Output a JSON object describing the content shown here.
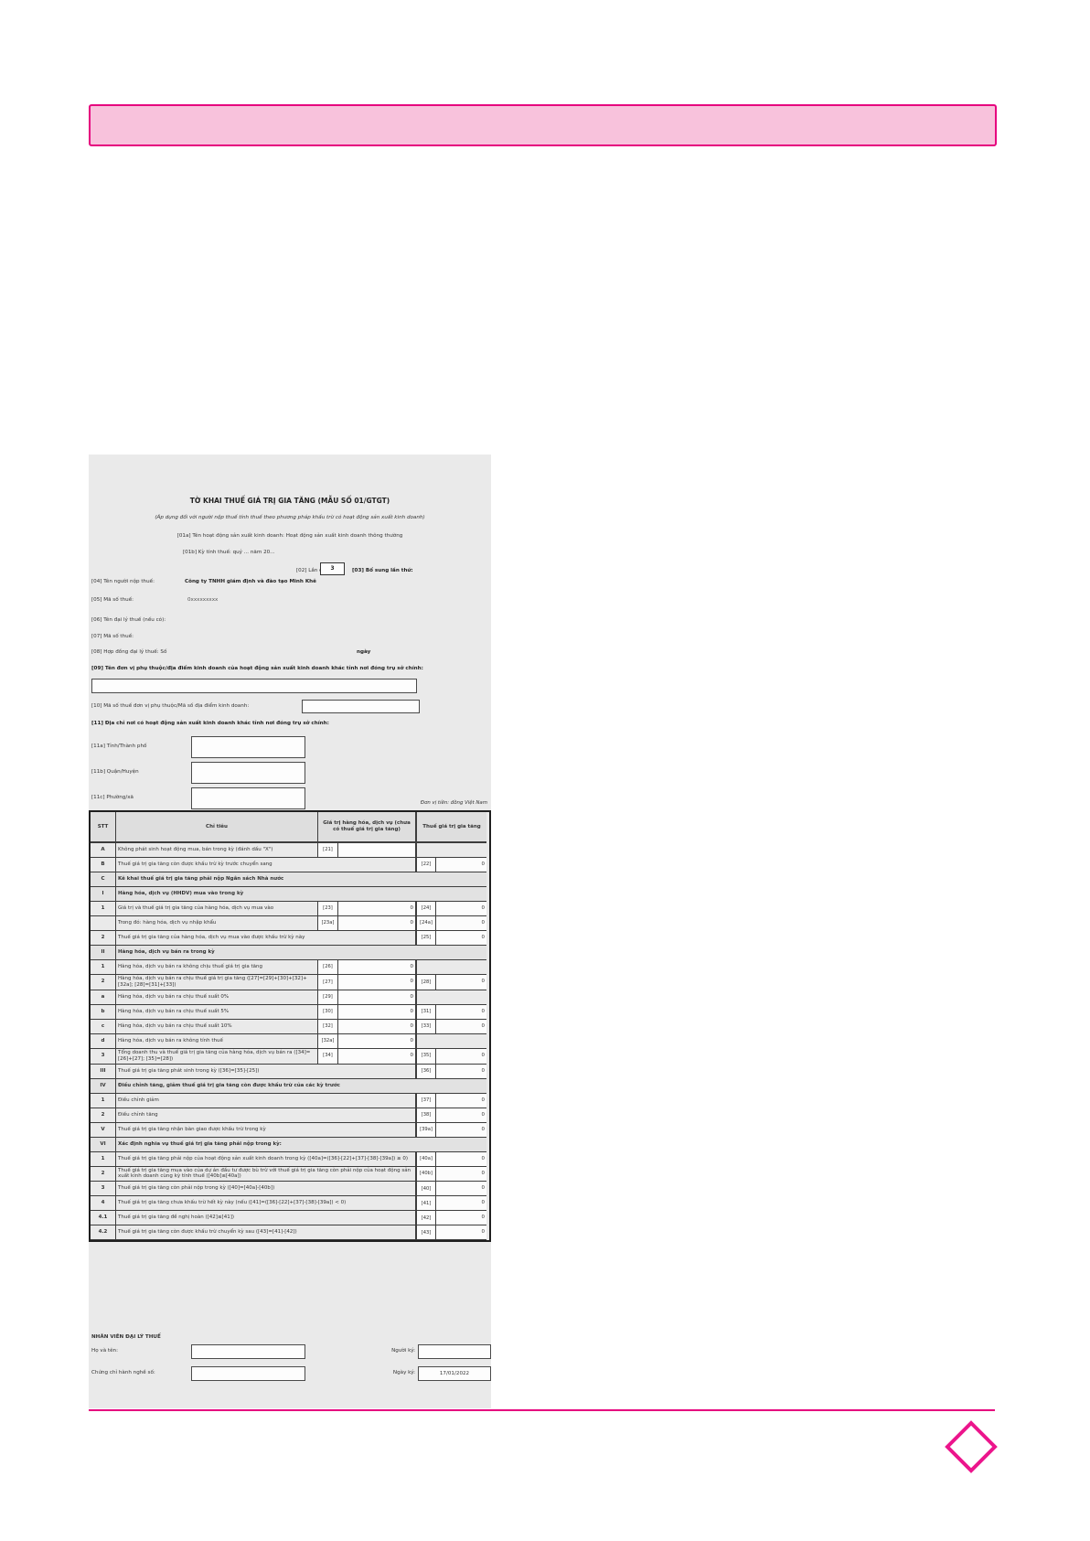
{
  "theme": {
    "accent": "#e6007e",
    "banner_fill": "#f8c2dc",
    "scan_background": "#eaeaea",
    "diamond_stroke": "#ec158c"
  },
  "scan": {
    "header": {
      "title": "TỜ KHAI THUẾ GIÁ TRỊ GIA TĂNG (MẪU SỐ 01/GTGT)",
      "subtitle": "(Áp dụng đối với người nộp thuế tính thuế theo phương pháp khấu trừ có hoạt động sản xuất kinh doanh)",
      "line_01a": "[01a] Tên hoạt động sản xuất kinh doanh: Hoạt động sản xuất kinh doanh thông thường",
      "line_01b": "[01b] Kỳ tính thuế: quý ... năm 20...",
      "f02_label": "[02] Lần đầu:",
      "f02_value": "3",
      "f03_label": "[03] Bổ sung lần thứ:",
      "f04_label": "[04] Tên người nộp thuế:",
      "f04_value": "Công ty TNHH giám định và đào tạo Minh Khê",
      "f05_label": "[05] Mã số thuế:",
      "f05_value": "0xxxxxxxxx",
      "f06_label": "[06] Tên đại lý thuế (nếu có):",
      "f07_label": "[07] Mã số thuế:",
      "f08_label": "[08] Hợp đồng đại lý thuế: Số",
      "f08_day": "ngày",
      "f09_label": "[09] Tên đơn vị phụ thuộc/địa điểm kinh doanh của hoạt động sản xuất kinh doanh khác tỉnh nơi đóng trụ sở chính:",
      "f10_label": "[10] Mã số thuế đơn vị phụ thuộc/Mã số địa điểm kinh doanh:",
      "f11_label": "[11] Địa chỉ nơi có hoạt động sản xuất kinh doanh khác tỉnh nơi đóng trụ sở chính:",
      "f11a_label": "[11a] Tỉnh/Thành phố",
      "f11b_label": "[11b] Quận/Huyện",
      "f11c_label": "[11c] Phường/xã",
      "currency_note": "Đơn vị tiền: đồng Việt Nam"
    },
    "table": {
      "headers": [
        "STT",
        "Chỉ tiêu",
        "Giá trị hàng hóa, dịch vụ (chưa có thuế giá trị gia tăng)",
        "Thuế giá trị gia tăng"
      ],
      "rows": [
        {
          "stt": "A",
          "label": "Không phát sinh hoạt động mua, bán trong kỳ (đánh dấu \"X\")",
          "c1": "[21]",
          "v1": ""
        },
        {
          "stt": "B",
          "label": "Thuế giá trị gia tăng còn được khấu trừ kỳ trước chuyển sang",
          "span": true,
          "c2": "[22]",
          "v2": "0"
        },
        {
          "stt": "C",
          "label": "Kê khai thuế giá trị gia tăng phải nộp Ngân sách Nhà nước",
          "kind": "section"
        },
        {
          "stt": "I",
          "label": "Hàng hóa, dịch vụ (HHDV) mua vào trong kỳ",
          "kind": "section"
        },
        {
          "stt": "1",
          "label": "Giá trị và thuế giá trị gia tăng của hàng hóa, dịch vụ mua vào",
          "c1": "[23]",
          "v1": "0",
          "c2": "[24]",
          "v2": "0"
        },
        {
          "stt": "",
          "label": "Trong đó: hàng hóa, dịch vụ nhập khẩu",
          "c1": "[23a]",
          "v1": "0",
          "c2": "[24a]",
          "v2": "0"
        },
        {
          "stt": "2",
          "label": "Thuế giá trị gia tăng của hàng hóa, dịch vụ mua vào được khấu trừ kỳ này",
          "span": true,
          "c2": "[25]",
          "v2": "0"
        },
        {
          "stt": "II",
          "label": "Hàng hóa, dịch vụ bán ra trong kỳ",
          "kind": "section"
        },
        {
          "stt": "1",
          "label": "Hàng hóa, dịch vụ bán ra không chịu thuế giá trị gia tăng",
          "c1": "[26]",
          "v1": "0"
        },
        {
          "stt": "2",
          "label": "Hàng hóa, dịch vụ bán ra chịu thuế giá trị gia tăng ([27]=[29]+[30]+[32]+[32a]; [28]=[31]+[33])",
          "c1": "[27]",
          "v1": "0",
          "c2": "[28]",
          "v2": "0"
        },
        {
          "stt": "a",
          "label": "Hàng hóa, dịch vụ bán ra chịu thuế suất 0%",
          "c1": "[29]",
          "v1": "0"
        },
        {
          "stt": "b",
          "label": "Hàng hóa, dịch vụ bán ra chịu thuế suất 5%",
          "c1": "[30]",
          "v1": "0",
          "c2": "[31]",
          "v2": "0"
        },
        {
          "stt": "c",
          "label": "Hàng hóa, dịch vụ bán ra chịu thuế suất 10%",
          "c1": "[32]",
          "v1": "0",
          "c2": "[33]",
          "v2": "0"
        },
        {
          "stt": "d",
          "label": "Hàng hóa, dịch vụ bán ra không tính thuế",
          "c1": "[32a]",
          "v1": "0"
        },
        {
          "stt": "3",
          "label": "Tổng doanh thu và thuế giá trị gia tăng của hàng hóa, dịch vụ bán ra ([34]=[26]+[27]; [35]=[28])",
          "c1": "[34]",
          "v1": "0",
          "c2": "[35]",
          "v2": "0"
        },
        {
          "stt": "III",
          "label": "Thuế giá trị gia tăng phát sinh trong kỳ ([36]=[35]-[25])",
          "span": true,
          "c2": "[36]",
          "v2": "0"
        },
        {
          "stt": "IV",
          "label": "Điều chỉnh tăng, giảm thuế giá trị gia tăng còn được khấu trừ của các kỳ trước",
          "kind": "section"
        },
        {
          "stt": "1",
          "label": "Điều chỉnh giảm",
          "span": true,
          "c2": "[37]",
          "v2": "0"
        },
        {
          "stt": "2",
          "label": "Điều chỉnh tăng",
          "span": true,
          "c2": "[38]",
          "v2": "0"
        },
        {
          "stt": "V",
          "label": "Thuế giá trị gia tăng nhận bàn giao được khấu trừ trong kỳ",
          "span": true,
          "c2": "[39a]",
          "v2": "0"
        },
        {
          "stt": "VI",
          "label": "Xác định nghĩa vụ thuế giá trị gia tăng phải nộp trong kỳ:",
          "kind": "section"
        },
        {
          "stt": "1",
          "label": "Thuế giá trị gia tăng phải nộp của hoạt động sản xuất kinh doanh trong kỳ ([40a]=([36]-[22]+[37]-[38]-[39a]) ≥ 0)",
          "span": true,
          "c2": "[40a]",
          "v2": "0"
        },
        {
          "stt": "2",
          "label": "Thuế giá trị gia tăng mua vào của dự án đầu tư được bù trừ với thuế giá trị gia tăng còn phải nộp của hoạt động sản xuất kinh doanh cùng kỳ tính thuế ([40b]≤[40a])",
          "span": true,
          "c2": "[40b]",
          "v2": "0"
        },
        {
          "stt": "3",
          "label": "Thuế giá trị gia tăng còn phải nộp trong kỳ ([40]=[40a]-[40b])",
          "span": true,
          "c2": "[40]",
          "v2": "0"
        },
        {
          "stt": "4",
          "label": "Thuế giá trị gia tăng chưa khấu trừ hết kỳ này (nếu ([41]=([36]-[22]+[37]-[38]-[39a]) < 0)",
          "span": true,
          "c2": "[41]",
          "v2": "0"
        },
        {
          "stt": "4.1",
          "label": "Thuế giá trị gia tăng đề nghị hoàn ([42]≤[41])",
          "span": true,
          "c2": "[42]",
          "v2": "0"
        },
        {
          "stt": "4.2",
          "label": "Thuế giá trị gia tăng còn được khấu trừ chuyển kỳ sau ([43]=[41]-[42])",
          "span": true,
          "c2": "[43]",
          "v2": "0"
        }
      ]
    },
    "footer": {
      "staff_title": "NHÂN VIÊN ĐẠI LÝ THUẾ",
      "name_label": "Họ và tên:",
      "cert_label": "Chứng chỉ hành nghề số:",
      "signer_label": "Người ký:",
      "sign_date_label": "Ngày ký:",
      "sign_date_value": "17/01/2022"
    }
  }
}
